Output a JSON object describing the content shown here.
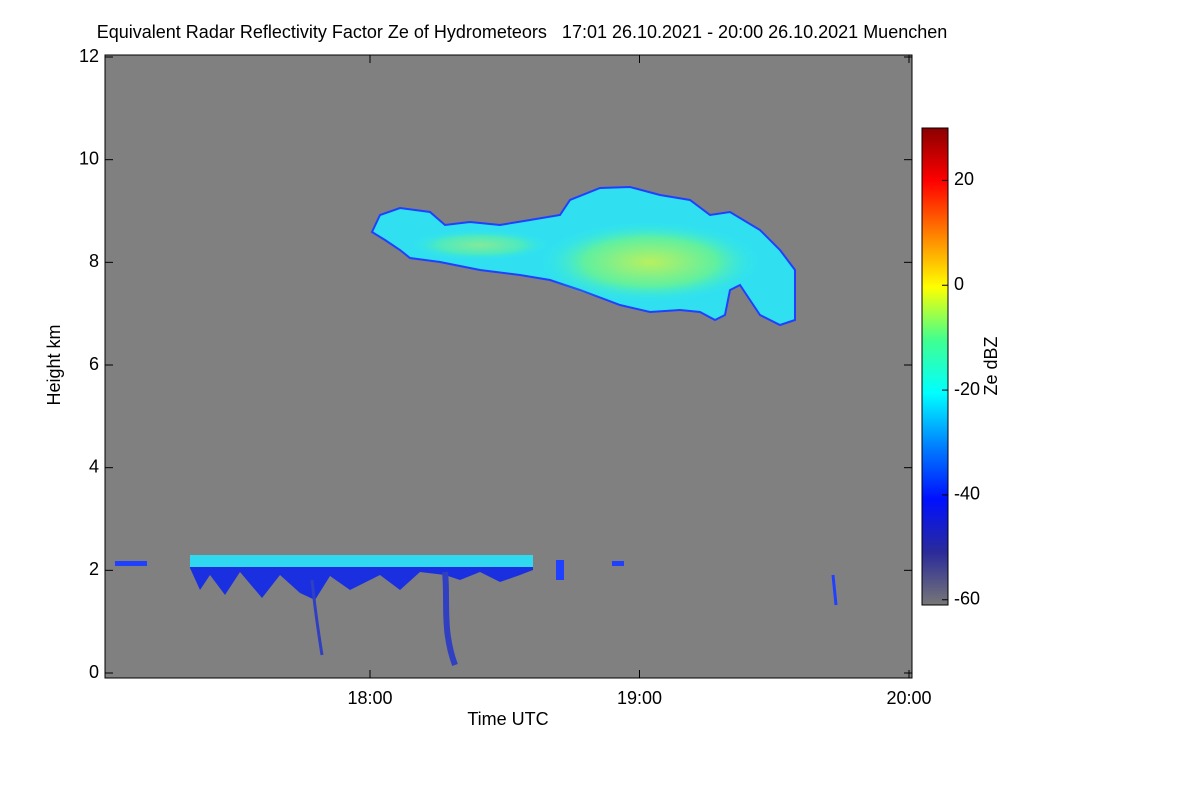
{
  "chart_data": {
    "type": "heatmap",
    "title": "Equivalent Radar Reflectivity Factor Ze of Hydrometeors   17:01 26.10.2021 - 20:00 26.10.2021 Muenchen",
    "x_label": "Time UTC",
    "y_label": "Height km",
    "xlim": [
      "17:01",
      "20:00"
    ],
    "xticks": [
      "18:00",
      "19:00",
      "20:00"
    ],
    "ylim": [
      0,
      12
    ],
    "yticks": [
      0,
      2,
      4,
      6,
      8,
      10,
      12
    ],
    "colorbar": {
      "label": "Ze dBZ",
      "lim": [
        -61,
        30
      ],
      "ticks": [
        -60,
        -40,
        -20,
        0,
        20
      ],
      "colormap": [
        "#777777",
        "#2a2a9a",
        "#0010ff",
        "#0080ff",
        "#00ffff",
        "#40ff90",
        "#ffff00",
        "#ff8000",
        "#ff0000",
        "#8b0000"
      ]
    }
  }
}
